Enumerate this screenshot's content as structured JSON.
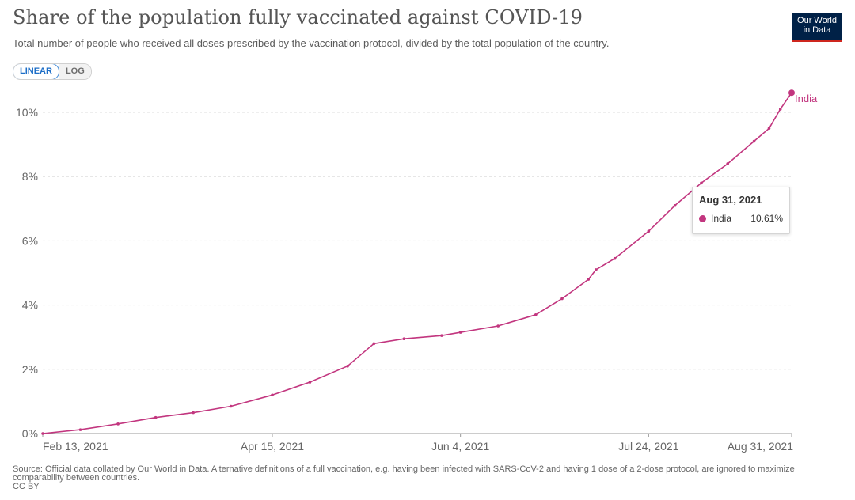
{
  "title": "Share of the population fully vaccinated against COVID-19",
  "subtitle": "Total number of people who received all doses prescribed by the vaccination protocol, divided by the total population of the country.",
  "logo": {
    "line1": "Our World",
    "line2": "in Data"
  },
  "scale_toggle": {
    "linear": "LINEAR",
    "log": "LOG",
    "selected": "linear"
  },
  "tooltip": {
    "date": "Aug 31, 2021",
    "series": "India",
    "value": "10.61%"
  },
  "footer": {
    "source": "Source: Official data collated by Our World in Data. Alternative definitions of a full vaccination, e.g. having been infected with SARS-CoV-2 and having 1 dose of a 2-dose protocol, are ignored to maximize comparability between countries.",
    "license": "CC BY"
  },
  "colors": {
    "series": "#c2367f",
    "grid": "#dddddd"
  },
  "chart_data": {
    "type": "line",
    "y_unit": "%",
    "ylim": [
      0,
      10.61
    ],
    "y_ticks": [
      "0%",
      "2%",
      "4%",
      "6%",
      "8%",
      "10%"
    ],
    "x_ticks": [
      "Feb 13, 2021",
      "Apr 15, 2021",
      "Jun 4, 2021",
      "Jul 24, 2021",
      "Aug 31, 2021"
    ],
    "grid": true,
    "series": [
      {
        "name": "India",
        "x": [
          "2021-02-13",
          "2021-02-23",
          "2021-03-05",
          "2021-03-15",
          "2021-03-25",
          "2021-04-04",
          "2021-04-15",
          "2021-04-25",
          "2021-05-05",
          "2021-05-12",
          "2021-05-20",
          "2021-05-30",
          "2021-06-04",
          "2021-06-14",
          "2021-06-24",
          "2021-07-01",
          "2021-07-08",
          "2021-07-10",
          "2021-07-15",
          "2021-07-24",
          "2021-07-31",
          "2021-08-07",
          "2021-08-14",
          "2021-08-21",
          "2021-08-25",
          "2021-08-28",
          "2021-08-31"
        ],
        "values": [
          0.0,
          0.12,
          0.3,
          0.5,
          0.65,
          0.85,
          1.2,
          1.6,
          2.1,
          2.8,
          2.95,
          3.05,
          3.15,
          3.35,
          3.7,
          4.2,
          4.8,
          5.1,
          5.45,
          6.3,
          7.1,
          7.8,
          8.4,
          9.1,
          9.5,
          10.1,
          10.61
        ]
      }
    ]
  }
}
